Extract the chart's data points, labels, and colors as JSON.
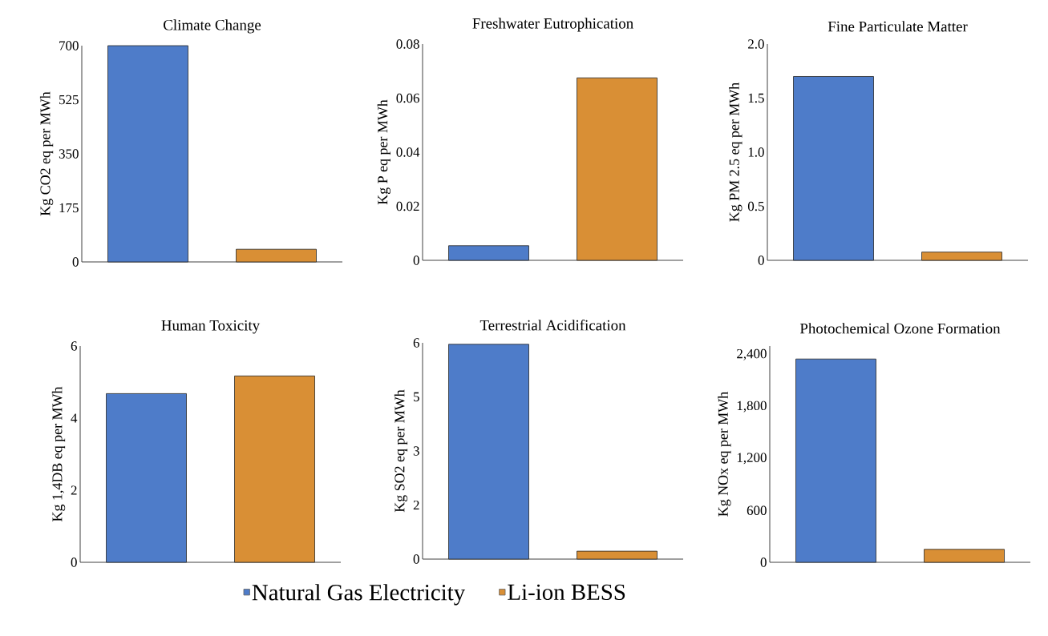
{
  "chart_data": [
    {
      "type": "bar",
      "title": "Climate Change",
      "ylabel": "Kg CO2 eq per MWh",
      "categories": [
        null
      ],
      "ylim": [
        0,
        700
      ],
      "yticks": [
        0,
        175,
        350,
        525,
        700
      ],
      "series": [
        {
          "color": "#4e7cc9",
          "values": [
            700
          ]
        },
        {
          "color": "#d98f35",
          "values": [
            41
          ]
        }
      ]
    },
    {
      "type": "bar",
      "title": "Freshwater Eutrophication",
      "ylabel": "Kg P eq per MWh",
      "categories": [
        null
      ],
      "ylim": [
        0,
        0.08
      ],
      "yticks": [
        0,
        0.02,
        0.04,
        0.06,
        0.08
      ],
      "series": [
        {
          "color": "#4e7cc9",
          "values": [
            0.0054
          ]
        },
        {
          "color": "#d98f35",
          "values": [
            0.0675
          ]
        }
      ]
    },
    {
      "type": "bar",
      "title": "Fine Particulate Matter",
      "ylabel": "Kg PM 2.5 eq per MWh",
      "categories": [
        null
      ],
      "ylim": [
        0,
        2
      ],
      "yticks": [
        0,
        0.5,
        {
          "value": 1,
          "label": "1.0"
        },
        1.5,
        {
          "value": 2,
          "label": "2.0"
        }
      ],
      "series": [
        {
          "color": "#4e7cc9",
          "values": [
            1.7
          ]
        },
        {
          "color": "#d98f35",
          "values": [
            0.076
          ]
        }
      ]
    },
    {
      "type": "bar",
      "title": "Human Toxicity",
      "ylabel": "Kg 1,4DB eq per MWh",
      "categories": [
        null
      ],
      "ylim": [
        0,
        6
      ],
      "yticks": [
        0,
        2,
        4,
        6
      ],
      "series": [
        {
          "color": "#4e7cc9",
          "values": [
            4.68
          ]
        },
        {
          "color": "#d98f35",
          "values": [
            5.17
          ]
        }
      ]
    },
    {
      "type": "bar",
      "title": "Terrestrial Acidification",
      "ylabel": "Kg SO2 eq per MWh",
      "categories": [
        null
      ],
      "ylim": [
        0,
        6
      ],
      "yticks": [
        0,
        {
          "value": 1.5,
          "label": "2"
        },
        3,
        {
          "value": 4.5,
          "label": "5"
        },
        6
      ],
      "legend": "bottom",
      "series": [
        {
          "name": "Natural Gas Electricity",
          "color": "#4e7cc9",
          "values": [
            5.96
          ]
        },
        {
          "name": "Li-ion BESS",
          "color": "#d98f35",
          "values": [
            0.22
          ]
        }
      ]
    },
    {
      "type": "bar",
      "title": "Photochemical Ozone Formation",
      "ylabel": "Kg NOx eq per MWh",
      "categories": [
        null
      ],
      "ylim": [
        0,
        2500
      ],
      "yticks": [
        0,
        600,
        {
          "value": 1200,
          "label": "1,200"
        },
        {
          "value": 1800,
          "label": "1,800"
        },
        {
          "value": 2400,
          "label": "2,400"
        }
      ],
      "series": [
        {
          "color": "#4e7cc9",
          "values": [
            2350
          ]
        },
        {
          "color": "#d98f35",
          "values": [
            150
          ]
        }
      ]
    }
  ]
}
